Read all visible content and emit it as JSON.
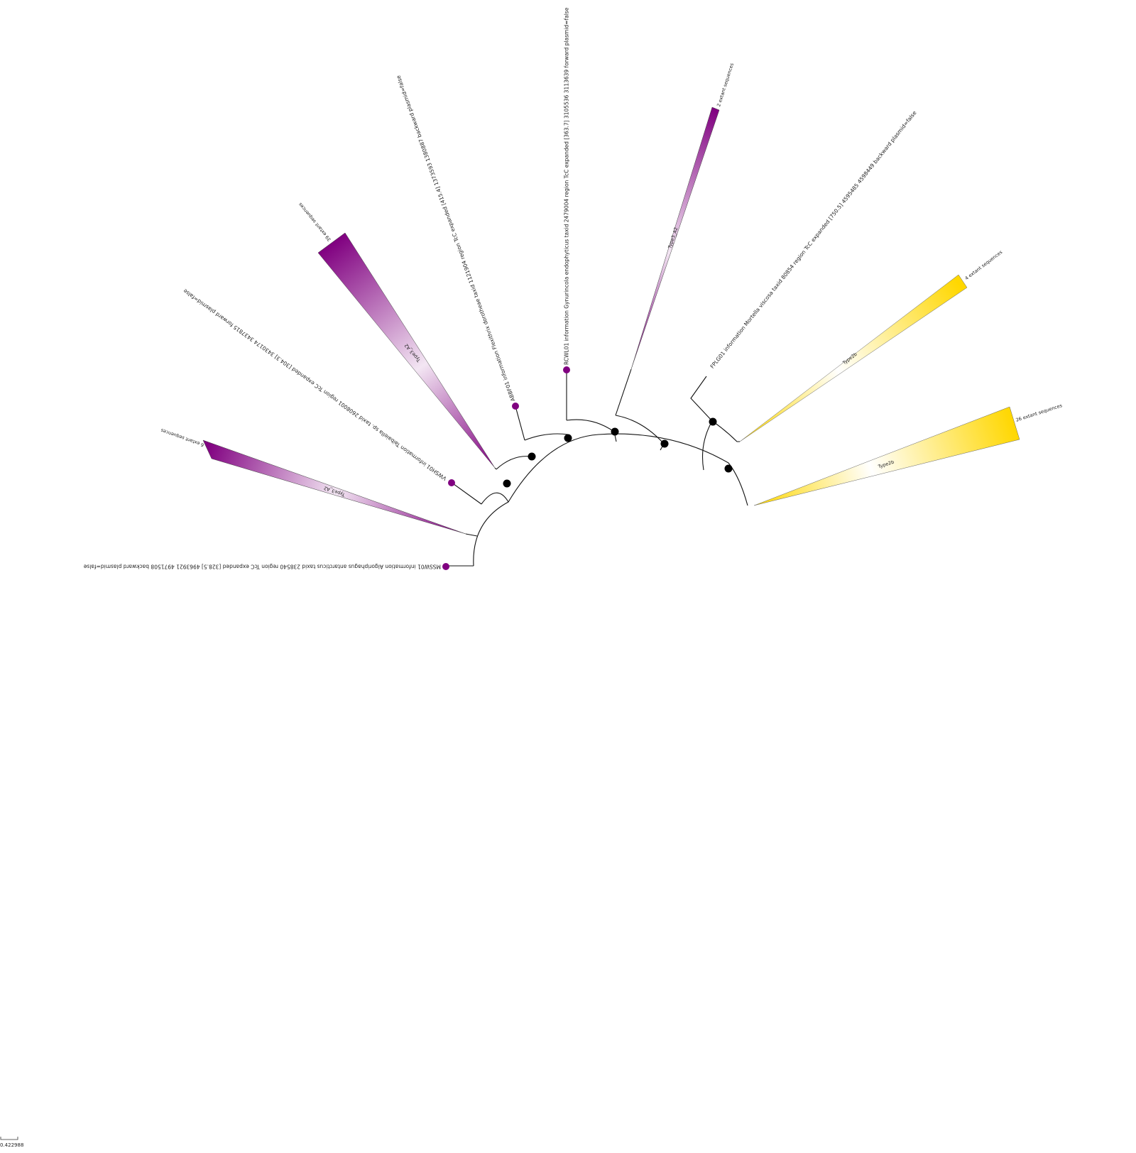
{
  "colors": {
    "type3_a2": "#800080",
    "type2b": "#FFD700",
    "branch": "#111111",
    "node": "#000000"
  },
  "leaves": [
    {
      "id": "msswo1",
      "label": "MSSW01 information Algoriphagus antarcticus taxid 238540 region TcC expanded [328.5] 4963921 4971508 backward plasmid=false"
    },
    {
      "id": "vwsh01",
      "label": "VWSH01 information Taibaiella sp. taxid 2608001 region TcC expanded [304.3] 3430174 3437815 forward plasmid=false"
    },
    {
      "id": "abbf01",
      "label": "ABBF01 information Flexithrix dorotheae taxid 1121904 region TcC expanded [415.4] 1373593 1380887 backward plasmid=false"
    },
    {
      "id": "rcwl01",
      "label": "RCWL01 information Gynurincola endophyticus taxid 2479004 region TcC expanded [363.7] 3105536 3113639 forward plasmid=false"
    },
    {
      "id": "fplg01",
      "label": "FPLG01 information Mortella viscosa taxid 80854 region TcC expanded [750.5] 4595485 4598449 backward plasmid=false"
    }
  ],
  "clades": [
    {
      "id": "c6",
      "count_label": "6 extant sequences",
      "type_label": "Type3_A2",
      "color": "#800080"
    },
    {
      "id": "c39",
      "count_label": "39 extant sequences",
      "type_label": "Type3_A2",
      "color": "#800080"
    },
    {
      "id": "c2",
      "count_label": "2 extant sequences",
      "type_label": "Type3_A2",
      "color": "#800080"
    },
    {
      "id": "c4",
      "count_label": "4 extant sequences",
      "type_label": "Type2b",
      "color": "#FFD700"
    },
    {
      "id": "c26",
      "count_label": "26 extant sequences",
      "type_label": "Type2b",
      "color": "#FFD700"
    }
  ],
  "scale_bar": {
    "label": "0.422988"
  }
}
